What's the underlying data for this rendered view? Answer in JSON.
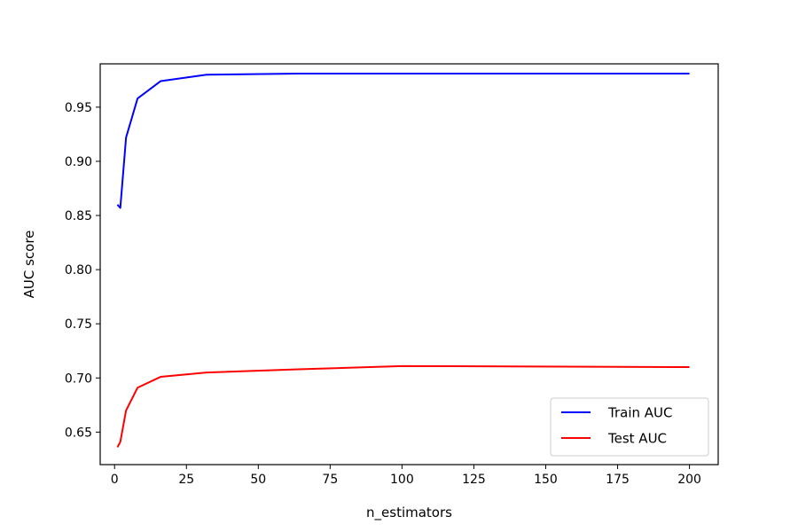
{
  "chart_data": {
    "type": "line",
    "xlabel": "n_estimators",
    "ylabel": "AUC score",
    "xlim": [
      -5,
      210
    ],
    "ylim": [
      0.62,
      0.99
    ],
    "xticks": [
      0,
      25,
      50,
      75,
      100,
      125,
      150,
      175,
      200
    ],
    "xtick_labels": [
      "0",
      "25",
      "50",
      "75",
      "100",
      "125",
      "150",
      "175",
      "200"
    ],
    "yticks": [
      0.65,
      0.7,
      0.75,
      0.8,
      0.85,
      0.9,
      0.95
    ],
    "ytick_labels": [
      "0.65",
      "0.70",
      "0.75",
      "0.80",
      "0.85",
      "0.90",
      "0.95"
    ],
    "grid": false,
    "legend_position": "lower-right",
    "x": [
      1,
      2,
      4,
      8,
      16,
      32,
      64,
      100,
      200
    ],
    "series": [
      {
        "name": "Train AUC",
        "color": "#0000ff",
        "values": [
          0.86,
          0.857,
          0.922,
          0.958,
          0.974,
          0.98,
          0.981,
          0.981,
          0.981
        ]
      },
      {
        "name": "Test AUC",
        "color": "#ff0000",
        "values": [
          0.636,
          0.641,
          0.67,
          0.691,
          0.701,
          0.705,
          0.708,
          0.711,
          0.71
        ]
      }
    ]
  }
}
